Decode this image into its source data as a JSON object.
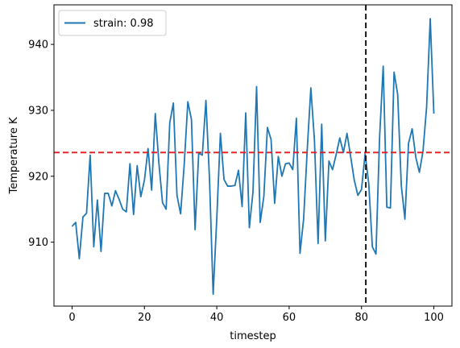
{
  "chart_data": {
    "type": "line",
    "xlabel": "timestep",
    "ylabel": "Temperature K",
    "xlim": [
      -5,
      105
    ],
    "ylim": [
      900.3,
      946.0
    ],
    "xticks": [
      0,
      20,
      40,
      60,
      80,
      100
    ],
    "yticks": [
      910,
      920,
      930,
      940
    ],
    "grid": false,
    "legend_position": "upper-left",
    "series": [
      {
        "name": "strain: 0.98",
        "color": "#1f77b4",
        "x": [
          0,
          1,
          2,
          3,
          4,
          5,
          6,
          7,
          8,
          9,
          10,
          11,
          12,
          13,
          14,
          15,
          16,
          17,
          18,
          19,
          20,
          21,
          22,
          23,
          24,
          25,
          26,
          27,
          28,
          29,
          30,
          31,
          32,
          33,
          34,
          35,
          36,
          37,
          38,
          39,
          40,
          41,
          42,
          43,
          44,
          45,
          46,
          47,
          48,
          49,
          50,
          51,
          52,
          53,
          54,
          55,
          56,
          57,
          58,
          59,
          60,
          61,
          62,
          63,
          64,
          65,
          66,
          67,
          68,
          69,
          70,
          71,
          72,
          73,
          74,
          75,
          76,
          77,
          78,
          79,
          80,
          81,
          82,
          83,
          84,
          85,
          86,
          87,
          88,
          89,
          90,
          91,
          92,
          93,
          94,
          95,
          96,
          97,
          98,
          99,
          100
        ],
        "y": [
          912.4,
          913.0,
          907.5,
          913.8,
          914.4,
          923.2,
          909.3,
          916.4,
          908.6,
          917.4,
          917.4,
          915.5,
          917.8,
          916.5,
          915.0,
          914.6,
          921.9,
          914.2,
          921.6,
          916.9,
          919.4,
          924.2,
          917.9,
          929.5,
          922.0,
          916.0,
          915.0,
          928.1,
          931.1,
          917.1,
          914.3,
          921.8,
          931.3,
          928.6,
          911.9,
          923.5,
          923.2,
          931.5,
          919.4,
          902.1,
          913.6,
          926.5,
          919.5,
          918.5,
          918.5,
          918.6,
          920.9,
          915.4,
          929.6,
          912.2,
          917.6,
          933.6,
          913.0,
          916.9,
          927.4,
          925.6,
          915.9,
          923.0,
          920.0,
          921.9,
          922.0,
          921.0,
          928.8,
          908.3,
          913.5,
          924.0,
          933.4,
          925.4,
          909.8,
          927.9,
          910.2,
          922.3,
          921.0,
          923.3,
          925.8,
          923.6,
          926.5,
          923.0,
          919.4,
          917.1,
          918.0,
          923.4,
          918.9,
          909.3,
          908.2,
          925.9,
          936.7,
          915.3,
          915.2,
          935.8,
          932.4,
          918.6,
          913.5,
          925.0,
          927.2,
          922.9,
          920.6,
          923.8,
          930.5,
          943.9,
          929.5
        ]
      }
    ],
    "hlines": [
      {
        "y": 923.6,
        "color": "#e41a1c",
        "style": "dashed"
      }
    ],
    "vlines": [
      {
        "x": 81.2,
        "color": "#000000",
        "style": "dashed"
      }
    ]
  }
}
